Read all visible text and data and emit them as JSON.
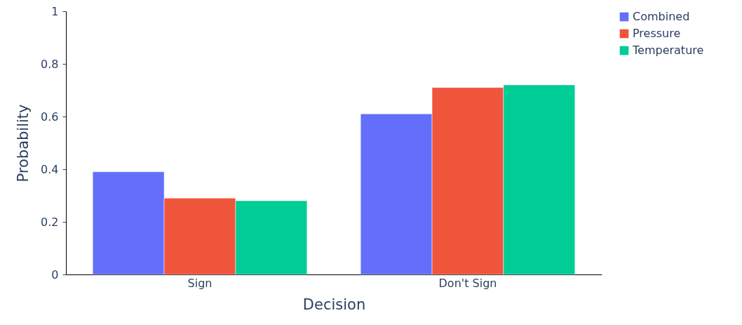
{
  "chart_data": {
    "type": "bar",
    "xlabel": "Decision",
    "ylabel": "Probability",
    "categories": [
      "Sign",
      "Don't Sign"
    ],
    "series": [
      {
        "name": "Combined",
        "color": "#636efa",
        "values": [
          0.39,
          0.61
        ]
      },
      {
        "name": "Pressure",
        "color": "#ef553b",
        "values": [
          0.29,
          0.71
        ]
      },
      {
        "name": "Temperature",
        "color": "#00cc96",
        "values": [
          0.28,
          0.72
        ]
      }
    ],
    "ylim": [
      0,
      1
    ],
    "yticks": [
      0,
      0.2,
      0.4,
      0.6,
      0.8,
      1
    ],
    "grid": false,
    "legend": "right"
  }
}
